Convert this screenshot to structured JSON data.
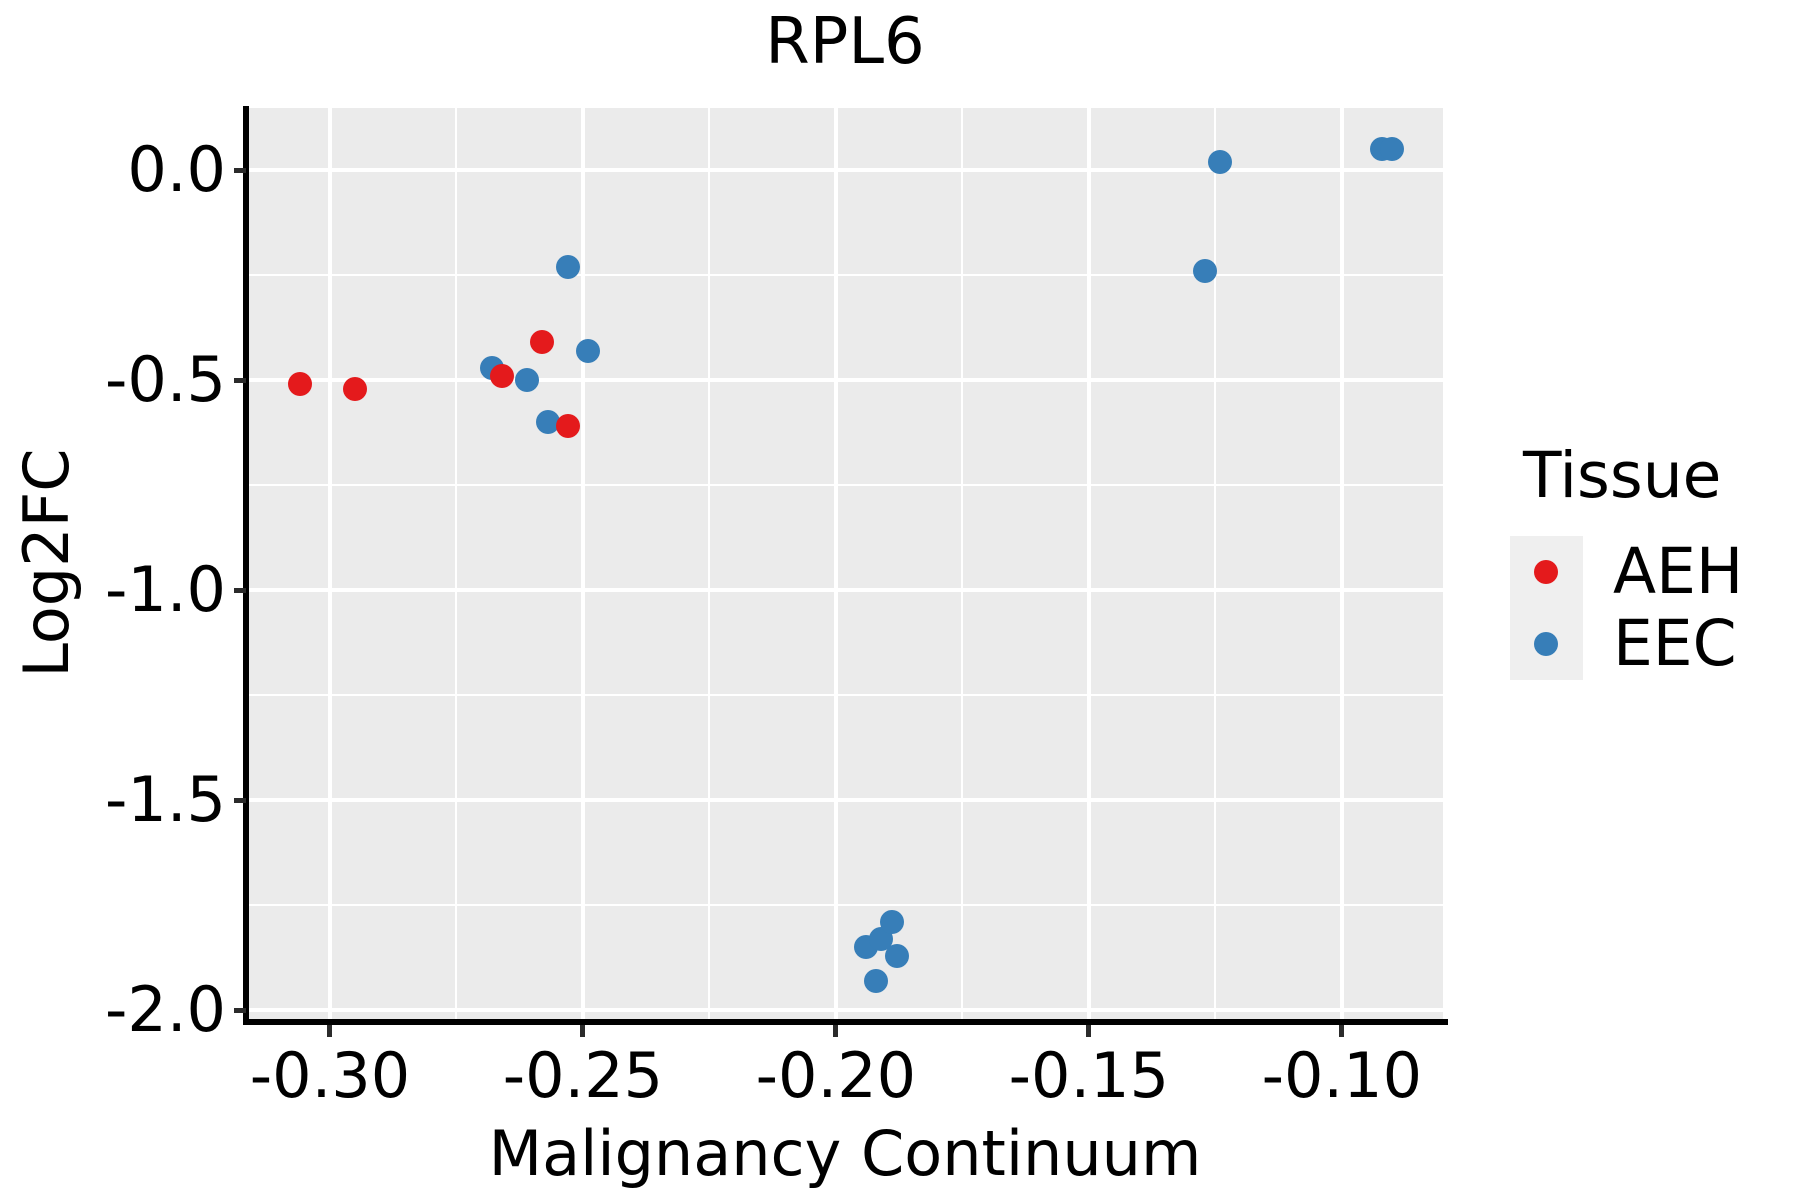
{
  "title": "RPL6",
  "axes": {
    "x": {
      "label": "Malignancy Continuum",
      "tick_labels": [
        "-0.30",
        "-0.25",
        "-0.20",
        "-0.15",
        "-0.10"
      ]
    },
    "y": {
      "label": "Log2FC",
      "tick_labels": [
        "0.0",
        "-0.5",
        "-1.0",
        "-1.5",
        "-2.0"
      ]
    }
  },
  "legend": {
    "title": "Tissue",
    "items": [
      {
        "label": "AEH",
        "color": "#E41A1C"
      },
      {
        "label": "EEC",
        "color": "#377EB8"
      }
    ]
  },
  "colors": {
    "aeh": "#E41A1C",
    "eec": "#377EB8",
    "panel_background": "#EBEBEB",
    "gridline": "#FFFFFF",
    "axis_spine": "#000000",
    "legend_key_background": "#EFEFEF"
  },
  "chart_data": {
    "type": "scatter",
    "title": "RPL6",
    "xlabel": "Malignancy Continuum",
    "ylabel": "Log2FC",
    "xlim": [
      -0.3164,
      -0.08
    ],
    "ylim": [
      -2.021,
      0.148
    ],
    "grid": "major and minor white gridlines on gray panel",
    "legend_position": "right",
    "x_ticks": [
      {
        "value": -0.3,
        "label": "-0.30"
      },
      {
        "value": -0.25,
        "label": "-0.25"
      },
      {
        "value": -0.2,
        "label": "-0.20"
      },
      {
        "value": -0.15,
        "label": "-0.15"
      },
      {
        "value": -0.1,
        "label": "-0.10"
      }
    ],
    "y_ticks": [
      {
        "value": 0.0,
        "label": "0.0"
      },
      {
        "value": -0.5,
        "label": "-0.5"
      },
      {
        "value": -1.0,
        "label": "-1.0"
      },
      {
        "value": -1.5,
        "label": "-1.5"
      },
      {
        "value": -2.0,
        "label": "-2.0"
      }
    ],
    "x_minor_gridlines": [
      -0.275,
      -0.225,
      -0.175,
      -0.125
    ],
    "y_minor_gridlines": [
      -0.25,
      -0.75,
      -1.25,
      -1.75
    ],
    "series": [
      {
        "name": "EEC",
        "color": "#377EB8",
        "points": [
          [
            -0.268,
            -0.47
          ],
          [
            -0.261,
            -0.5
          ],
          [
            -0.253,
            -0.23
          ],
          [
            -0.249,
            -0.43
          ],
          [
            -0.257,
            -0.6
          ],
          [
            -0.127,
            -0.24
          ],
          [
            -0.124,
            0.02
          ],
          [
            -0.092,
            0.05
          ],
          [
            -0.09,
            0.05
          ],
          [
            -0.194,
            -1.85
          ],
          [
            -0.191,
            -1.83
          ],
          [
            -0.189,
            -1.79
          ],
          [
            -0.188,
            -1.87
          ],
          [
            -0.192,
            -1.93
          ]
        ]
      },
      {
        "name": "AEH",
        "color": "#E41A1C",
        "points": [
          [
            -0.306,
            -0.51
          ],
          [
            -0.295,
            -0.52
          ],
          [
            -0.266,
            -0.49
          ],
          [
            -0.258,
            -0.41
          ],
          [
            -0.253,
            -0.61
          ]
        ]
      }
    ]
  }
}
